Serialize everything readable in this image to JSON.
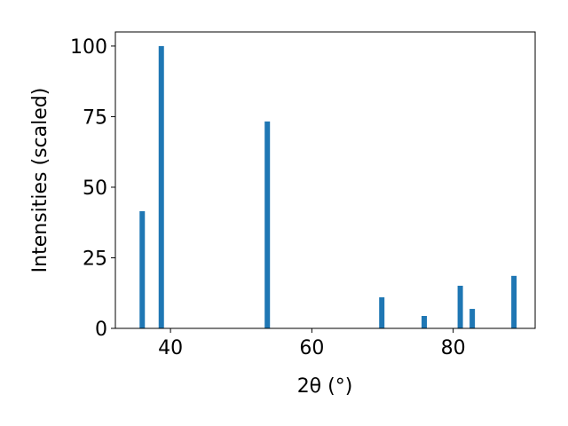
{
  "chart_data": {
    "type": "bar",
    "xlabel": "2θ (°)",
    "ylabel": "Intensities (scaled)",
    "x": [
      36.0,
      38.7,
      53.7,
      69.9,
      75.9,
      81.0,
      82.7,
      88.6
    ],
    "values": [
      41.5,
      100,
      73.3,
      11.0,
      4.4,
      15.1,
      6.9,
      18.6
    ],
    "color": "#1f77b4",
    "xlim": [
      32.2,
      91.6
    ],
    "xticks": [
      40,
      60,
      80
    ],
    "ylim": [
      0,
      105
    ],
    "yticks": [
      0,
      25,
      50,
      75,
      100
    ]
  }
}
